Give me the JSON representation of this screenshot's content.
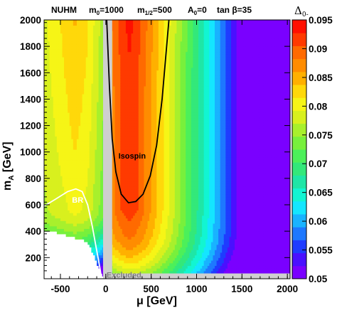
{
  "chart_data": {
    "type": "heatmap",
    "header": {
      "model": "NUHM",
      "m0": "m",
      "m0_sub": "0",
      "m0_val": "=1000",
      "m12": "m",
      "m12_sub": "1/2",
      "m12_val": "=500",
      "a0": "A",
      "a0_sub": "0",
      "a0_val": "=0",
      "tanb": "tan β=35"
    },
    "xlabel": "μ [GeV]",
    "ylabel_main": "m",
    "ylabel_sub": "A",
    "ylabel_unit": " [GeV]",
    "zlabel": "Δ",
    "zlabel_sub": "0-",
    "xlim": [
      -680,
      2030
    ],
    "ylim": [
      40,
      2000
    ],
    "zlim": [
      0.05,
      0.095
    ],
    "x_ticks": [
      {
        "value": -500,
        "label": "-500"
      },
      {
        "value": 0,
        "label": "0"
      },
      {
        "value": 500,
        "label": "500"
      },
      {
        "value": 1000,
        "label": "1000"
      },
      {
        "value": 1500,
        "label": "1500"
      },
      {
        "value": 2000,
        "label": "2000"
      }
    ],
    "y_ticks": [
      {
        "value": 200,
        "label": "200"
      },
      {
        "value": 400,
        "label": "400"
      },
      {
        "value": 600,
        "label": "600"
      },
      {
        "value": 800,
        "label": "800"
      },
      {
        "value": 1000,
        "label": "1000"
      },
      {
        "value": 1200,
        "label": "1200"
      },
      {
        "value": 1400,
        "label": "1400"
      },
      {
        "value": 1600,
        "label": "1600"
      },
      {
        "value": 1800,
        "label": "1800"
      },
      {
        "value": 2000,
        "label": "2000"
      }
    ],
    "colorbar_ticks": [
      {
        "value": 0.05,
        "label": "0.05"
      },
      {
        "value": 0.055,
        "label": "0.055"
      },
      {
        "value": 0.06,
        "label": "0.06"
      },
      {
        "value": 0.065,
        "label": "0.065"
      },
      {
        "value": 0.07,
        "label": "0.07"
      },
      {
        "value": 0.075,
        "label": "0.075"
      },
      {
        "value": 0.08,
        "label": "0.08"
      },
      {
        "value": 0.085,
        "label": "0.085"
      },
      {
        "value": 0.09,
        "label": "0.09"
      },
      {
        "value": 0.095,
        "label": "0.095"
      }
    ],
    "palette": [
      "#7a00ff",
      "#4a10ff",
      "#1f3cff",
      "#1e78ff",
      "#19b3ff",
      "#14e6ff",
      "#12f5d2",
      "#1fe6a6",
      "#33e87a",
      "#4cf05a",
      "#78f03c",
      "#a8f02c",
      "#d8f01e",
      "#f6f516",
      "#ffd80a",
      "#ffb000",
      "#ff8c00",
      "#ff6a00",
      "#ff3a00",
      "#ff0f00"
    ],
    "excluded_band": {
      "x_range": [
        -30,
        70
      ]
    },
    "excluded_bottom": {
      "y_max": 80,
      "x_min": 0
    },
    "annotations": {
      "isospin": {
        "text": "Isospin",
        "x": 290,
        "y": 950
      },
      "br": {
        "text": "BR",
        "x": -310,
        "y": 615
      },
      "excluded": {
        "text": "Excluded",
        "x": 200,
        "y": 65
      }
    },
    "isospin_contour": [
      [
        10,
        2000
      ],
      [
        40,
        1500
      ],
      [
        70,
        1100
      ],
      [
        110,
        850
      ],
      [
        170,
        680
      ],
      [
        250,
        615
      ],
      [
        330,
        625
      ],
      [
        410,
        680
      ],
      [
        490,
        820
      ],
      [
        560,
        1050
      ],
      [
        620,
        1400
      ],
      [
        670,
        1800
      ],
      [
        695,
        2000
      ]
    ],
    "br_contour": [
      [
        -680,
        590
      ],
      [
        -560,
        640
      ],
      [
        -420,
        700
      ],
      [
        -330,
        720
      ],
      [
        -260,
        700
      ],
      [
        -200,
        600
      ],
      [
        -150,
        440
      ],
      [
        -110,
        290
      ],
      [
        -80,
        180
      ],
      [
        -60,
        100
      ],
      [
        -50,
        50
      ]
    ],
    "grid": false
  }
}
